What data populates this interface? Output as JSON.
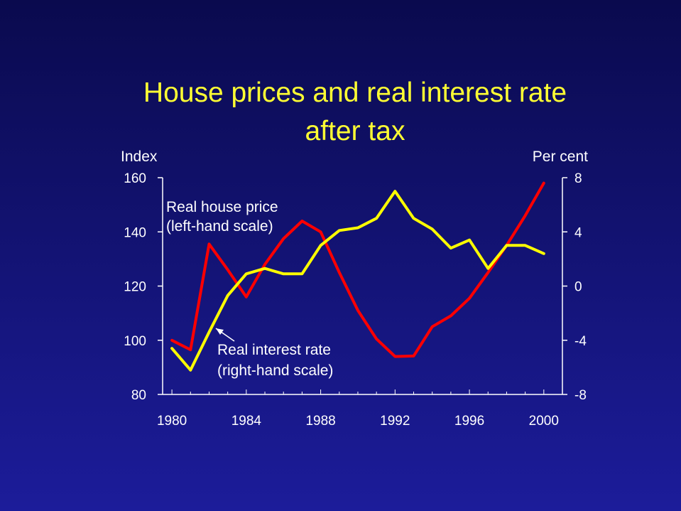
{
  "chart_data": {
    "type": "line",
    "title": "House prices and real interest rate after tax",
    "title_lines": [
      "House prices and real interest rate",
      "after tax"
    ],
    "left_axis": {
      "label": "Index",
      "ylim": [
        80,
        160
      ],
      "ticks": [
        80,
        100,
        120,
        140,
        160
      ]
    },
    "right_axis": {
      "label": "Per cent",
      "ylim": [
        -8,
        8
      ],
      "ticks": [
        -8,
        -4,
        0,
        4,
        8
      ]
    },
    "x_axis": {
      "xlim": [
        1979.5,
        2001
      ],
      "tick_labels": [
        "1980",
        "1984",
        "1988",
        "1992",
        "1996",
        "2000"
      ]
    },
    "grid": false,
    "series": [
      {
        "name": "Real house price",
        "annotation": [
          "Real house price",
          "(left-hand scale)"
        ],
        "axis": "left",
        "color": "#ff0000",
        "x": [
          1980,
          1981,
          1982,
          1983,
          1984,
          1985,
          1986,
          1987,
          1988,
          1989,
          1990,
          1991,
          1992,
          1993,
          1994,
          1995,
          1996,
          1997,
          1998,
          1999,
          2000
        ],
        "values": [
          100,
          96.5,
          135.5,
          126,
          116,
          128,
          137.5,
          144,
          140,
          125,
          111,
          100.5,
          94,
          94.2,
          105,
          109,
          115.5,
          125,
          135,
          146,
          158
        ]
      },
      {
        "name": "Real interest rate",
        "annotation": [
          "Real interest rate",
          "(right-hand scale)"
        ],
        "axis": "right",
        "color": "#ffff00",
        "x": [
          1980,
          1981,
          1982,
          1983,
          1984,
          1985,
          1986,
          1987,
          1988,
          1989,
          1990,
          1991,
          1992,
          1993,
          1994,
          1995,
          1996,
          1997,
          1998,
          1999,
          2000
        ],
        "values": [
          -4.6,
          -6.2,
          -3.4,
          -0.7,
          0.9,
          1.3,
          0.9,
          0.9,
          3.0,
          4.1,
          4.3,
          5.0,
          7.0,
          5.0,
          4.2,
          2.8,
          3.4,
          1.3,
          3.0,
          3.0,
          2.4
        ]
      }
    ]
  }
}
